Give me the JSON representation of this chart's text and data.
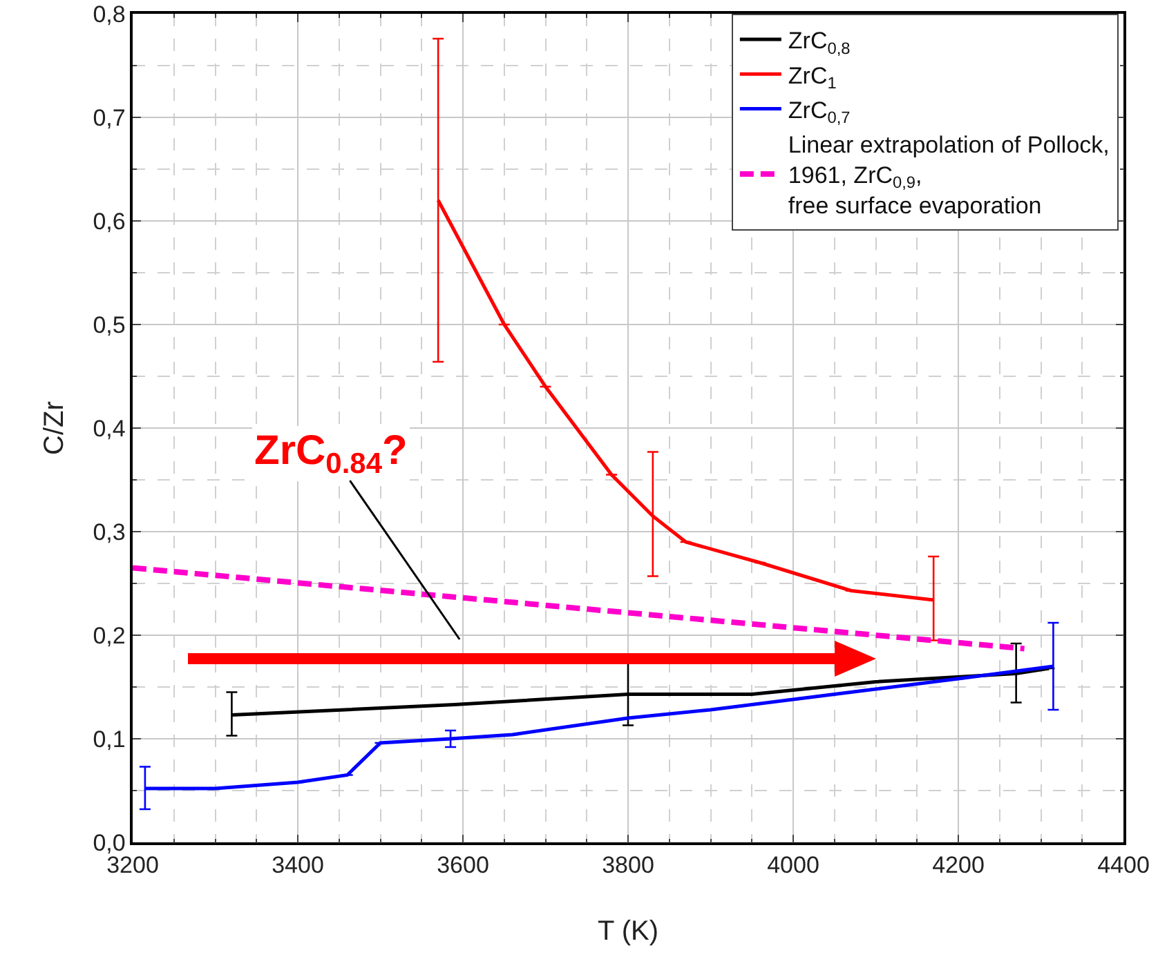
{
  "chart_data": {
    "type": "line",
    "xlabel": "T (K)",
    "ylabel": "C/Zr",
    "xlim": [
      3200,
      4400
    ],
    "xticks": [
      3200,
      3400,
      3600,
      3800,
      4000,
      4200,
      4400
    ],
    "ylim": [
      0,
      0.8
    ],
    "yticks": [
      {
        "value": 0,
        "label": "0,0"
      },
      {
        "value": 0.1,
        "label": "0,1"
      },
      {
        "value": 0.2,
        "label": "0,2"
      },
      {
        "value": 0.3,
        "label": "0,3"
      },
      {
        "value": 0.4,
        "label": "0,4"
      },
      {
        "value": 0.5,
        "label": "0,5"
      },
      {
        "value": 0.6,
        "label": "0,6"
      },
      {
        "value": 0.7,
        "label": "0,7"
      },
      {
        "value": 0.8,
        "label": "0,8"
      }
    ],
    "grid": true,
    "legend": "top right",
    "line_style": "solid",
    "marker": "none",
    "series": [
      {
        "name": "ZrC$_{0,8}$",
        "color": "#000000",
        "x": [
          3320,
          3590,
          3800,
          3950,
          4100,
          4270,
          4310
        ],
        "values": [
          0.123,
          0.133,
          0.143,
          0.143,
          0.155,
          0.163,
          0.168
        ],
        "errors": [
          [
            0.103,
            0.145
          ],
          null,
          [
            0.113,
            0.173
          ],
          null,
          null,
          [
            0.135,
            0.192
          ],
          null
        ]
      },
      {
        "name": "ZrC$_{1}$",
        "color": "#ff0000",
        "x": [
          3570,
          3650,
          3700,
          3780,
          3830,
          3870,
          3960,
          4070,
          4170
        ],
        "values": [
          0.62,
          0.5,
          0.44,
          0.355,
          0.315,
          0.29,
          0.27,
          0.243,
          0.234
        ],
        "errors": [
          [
            0.464,
            0.776
          ],
          null,
          null,
          null,
          [
            0.257,
            0.377
          ],
          null,
          null,
          null,
          [
            0.195,
            0.276
          ]
        ]
      },
      {
        "name": "ZrC$_{0,7}$",
        "color": "#0000ff",
        "x": [
          3215,
          3300,
          3400,
          3460,
          3500,
          3585,
          3660,
          3800,
          3900,
          4000,
          4100,
          4200,
          4315
        ],
        "values": [
          0.052,
          0.052,
          0.058,
          0.065,
          0.096,
          0.1,
          0.104,
          0.12,
          0.128,
          0.138,
          0.148,
          0.158,
          0.17
        ],
        "errors": [
          [
            0.032,
            0.073
          ],
          null,
          null,
          null,
          null,
          [
            0.092,
            0.108
          ],
          null,
          null,
          null,
          null,
          null,
          null,
          [
            0.128,
            0.212
          ]
        ]
      },
      {
        "name": "Linear extrapolation of Pollock,\n1961, ZrC$_{0,9}$,\nfree surface evaporation",
        "color": "#ff00cc",
        "line_style": "dashed",
        "x": [
          3200,
          4280
        ],
        "values": [
          0.265,
          0.187
        ]
      }
    ],
    "annotations": [
      "ZrC$_{0.84}$?"
    ]
  }
}
